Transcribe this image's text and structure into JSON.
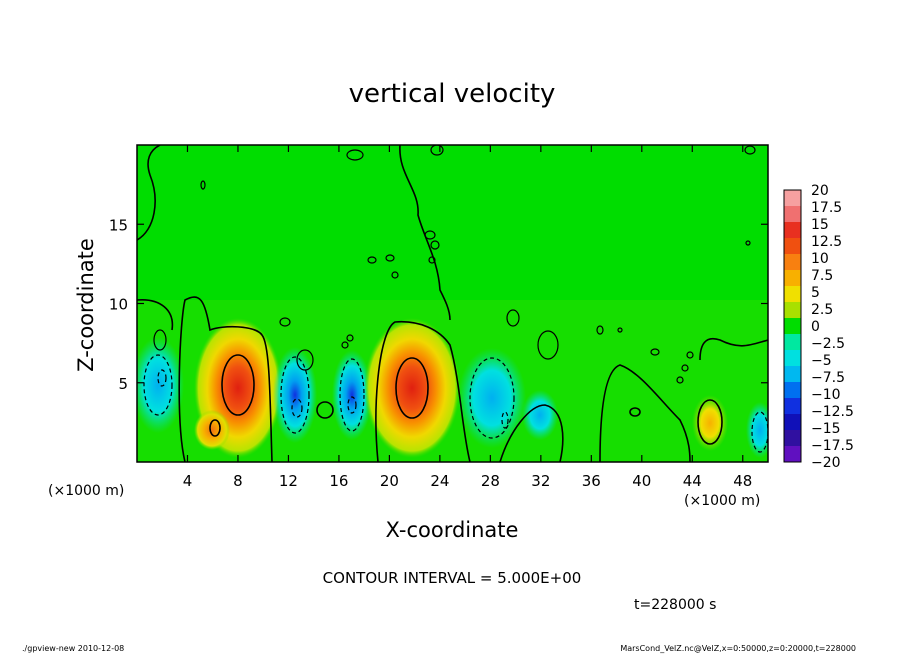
{
  "chart_data": {
    "type": "heatmap",
    "title": "vertical velocity",
    "xlabel": "X-coordinate",
    "ylabel": "Z-coordinate",
    "x_units_label": "(×1000 m)",
    "x_units_label_right": "(×1000 m)",
    "x_ticks": [
      "4",
      "8",
      "12",
      "16",
      "20",
      "24",
      "28",
      "32",
      "36",
      "40",
      "44",
      "48"
    ],
    "y_ticks": [
      "5",
      "10",
      "15"
    ],
    "xlim": [
      0,
      50
    ],
    "ylim": [
      0,
      20
    ],
    "contour_interval_text": "CONTOUR INTERVAL = 5.000E+00",
    "time_text": "t=228000 s",
    "colorbar": {
      "labels": [
        "20",
        "17.5",
        "15",
        "12.5",
        "10",
        "7.5",
        "5",
        "2.5",
        "0",
        "−2.5",
        "−5",
        "−7.5",
        "−10",
        "−12.5",
        "−15",
        "−17.5",
        "−20"
      ],
      "colors": [
        "#f6a0a0",
        "#f07070",
        "#e83020",
        "#f05010",
        "#f88010",
        "#f8b000",
        "#f0e000",
        "#a8e000",
        "#00dd00",
        "#00e8a0",
        "#00e0e0",
        "#00b8f0",
        "#0070f0",
        "#1030e0",
        "#1010b8",
        "#3010a0",
        "#6010c0"
      ]
    },
    "cells": [
      {
        "x": 2.8,
        "z": 5.5,
        "value": -9
      },
      {
        "x": 8.2,
        "z": 5.0,
        "value": 18
      },
      {
        "x": 6.0,
        "z": 2.2,
        "value": 12
      },
      {
        "x": 13.0,
        "z": 4.0,
        "value": -10
      },
      {
        "x": 16.5,
        "z": 4.0,
        "value": -9
      },
      {
        "x": 21.8,
        "z": 5.0,
        "value": 18
      },
      {
        "x": 29.5,
        "z": 4.5,
        "value": -8
      },
      {
        "x": 32.0,
        "z": 3.0,
        "value": -7
      },
      {
        "x": 45.5,
        "z": 2.5,
        "value": 9
      },
      {
        "x": 49.0,
        "z": 2.0,
        "value": -5
      }
    ]
  },
  "footer": {
    "left": "./gpview-new  2010-12-08",
    "right": "MarsCond_VelZ.nc@VelZ,x=0:50000,z=0:20000,t=228000"
  }
}
